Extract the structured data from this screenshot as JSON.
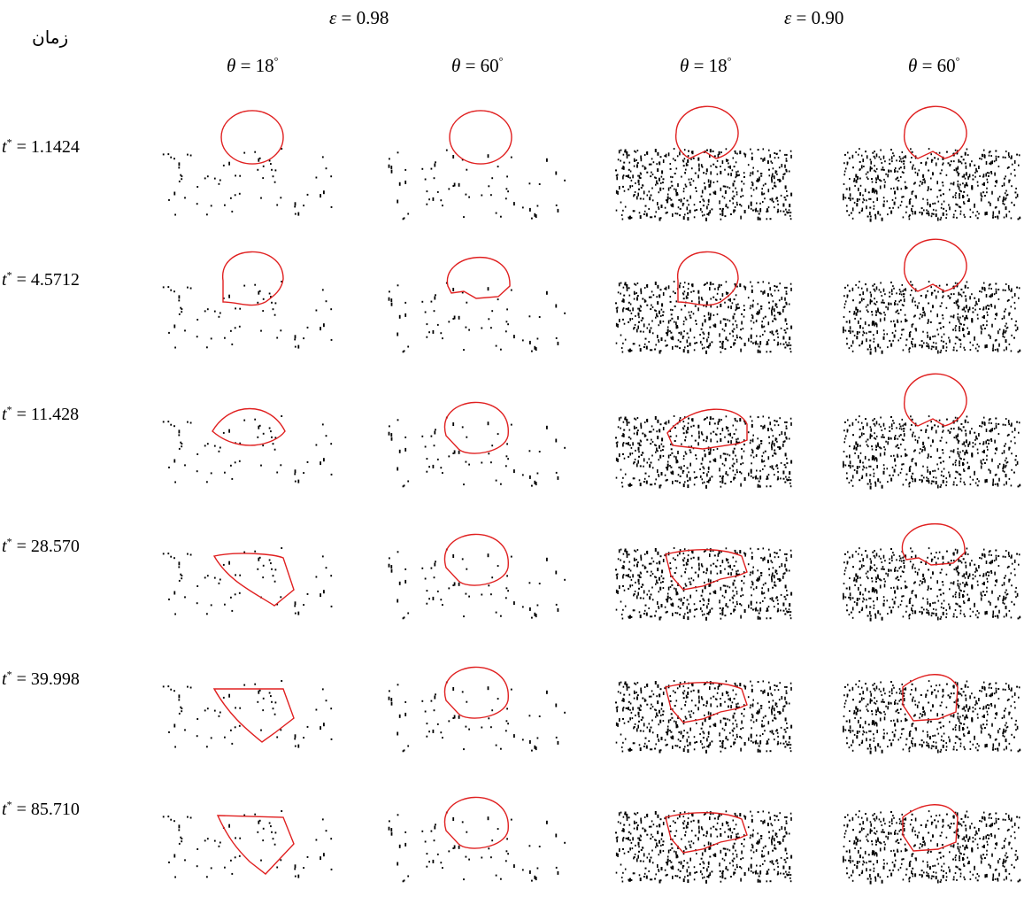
{
  "corner_label": "زمان",
  "columns": [
    {
      "eps": "ε = 0.98",
      "theta": "θ = 18°"
    },
    {
      "eps": "ε = 0.98",
      "theta": "θ = 60°"
    },
    {
      "eps": "ε = 0.90",
      "theta": "θ = 18°"
    },
    {
      "eps": "ε = 0.90",
      "theta": "θ = 60°"
    }
  ],
  "eps_headers": [
    "ε = 0.98",
    "ε = 0.90"
  ],
  "time_symbol": "t",
  "time_values": [
    "1.1424",
    "4.5712",
    "11.428",
    "28.570",
    "39.998",
    "85.710"
  ],
  "colors": {
    "droplet": "#e02020",
    "particles": "#000000"
  },
  "rows": [
    {
      "time": "1.1424",
      "panels": [
        "circle-above",
        "circle-above",
        "circle-touch",
        "circle-touch"
      ]
    },
    {
      "time": "4.5712",
      "panels": [
        "penetrating-18",
        "circle-embedded",
        "penetrating-18",
        "circle-touch"
      ]
    },
    {
      "time": "11.428",
      "panels": [
        "lens",
        "circle-embedded-deep",
        "flat-spread",
        "circle-touch"
      ]
    },
    {
      "time": "28.570",
      "panels": [
        "wedge",
        "circle-embedded-deep",
        "blob-wide",
        "circle-embedded"
      ]
    },
    {
      "time": "39.998",
      "panels": [
        "polygon",
        "circle-embedded-deep",
        "blob-wide",
        "blob-deep"
      ]
    },
    {
      "time": "85.710",
      "panels": [
        "polygon-final",
        "circle-embedded-deep",
        "blob-wide",
        "blob-deep"
      ]
    }
  ]
}
